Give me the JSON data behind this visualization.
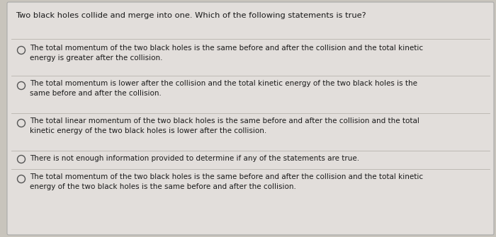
{
  "question": "Two black holes collide and merge into one. Which of the following statements is true?",
  "options": [
    "The total momentum of the two black holes is the same before and after the collision and the total kinetic\nenergy is greater after the collision.",
    "The total momentum is lower after the collision and the total kinetic energy of the two black holes is the\nsame before and after the collision.",
    "The total linear momentum of the two black holes is the same before and after the collision and the total\nkinetic energy of the two black holes is lower after the collision.",
    "There is not enough information provided to determine if any of the statements are true.",
    "The total momentum of the two black holes is the same before and after the collision and the total kinetic\nenergy of the two black holes is the same before and after the collision."
  ],
  "background_color": "#c8c4bc",
  "card_color": "#e2dedb",
  "text_color": "#1a1a1a",
  "question_fontsize": 8.2,
  "option_fontsize": 7.5,
  "separator_color": "#b8b4ae",
  "circle_color": "#555555"
}
